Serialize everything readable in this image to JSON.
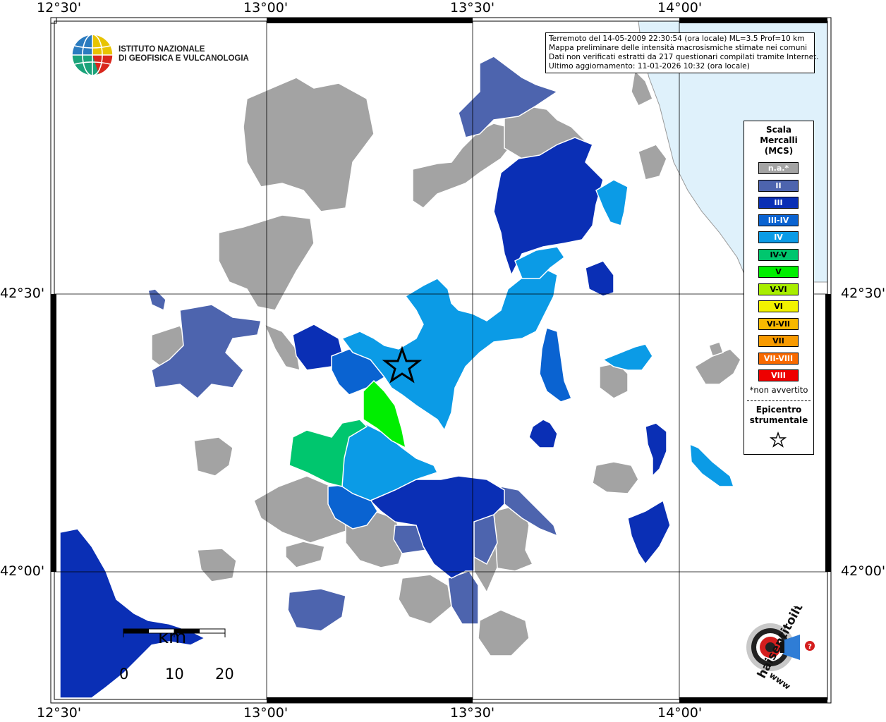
{
  "coordinates": {
    "top_longitudes": [
      "12°30'",
      "13°00'",
      "13°30'",
      "14°00'"
    ],
    "bottom_longitudes": [
      "12°30'",
      "13°00'",
      "13°30'",
      "14°00'"
    ],
    "left_latitudes": [
      "42°30'",
      "42°00'"
    ],
    "right_latitudes": [
      "42°30'",
      "42°00'"
    ]
  },
  "info_box": {
    "line1": "Terremoto del 14-05-2009 22:30:54 (ora locale) ML=3.5 Prof=10 km",
    "line2": "Mappa preliminare delle intensità macrosismiche stimate nei comuni",
    "line3": "Dati non verificati estratti da 217 questionari compilati tramite Internet.",
    "line4": "Ultimo aggiornamento: 11-01-2026 10:32 (ora locale)"
  },
  "institute": {
    "line1": "ISTITUTO NAZIONALE",
    "line2": "DI GEOFISICA E VULCANOLOGIA"
  },
  "legend": {
    "title_line1": "Scala",
    "title_line2": "Mercalli",
    "title_line3": "(MCS)",
    "items": [
      {
        "label": "n.a.*",
        "color": "#a3a3a3",
        "text_color": "#ffffff"
      },
      {
        "label": "II",
        "color": "#4d64ae",
        "text_color": "#ffffff"
      },
      {
        "label": "III",
        "color": "#0a2fb5",
        "text_color": "#ffffff"
      },
      {
        "label": "III-IV",
        "color": "#0a63d1",
        "text_color": "#ffffff"
      },
      {
        "label": "IV",
        "color": "#0b9be6",
        "text_color": "#ffffff"
      },
      {
        "label": "IV-V",
        "color": "#00c66e",
        "text_color": "#000000"
      },
      {
        "label": "V",
        "color": "#00ee00",
        "text_color": "#000000"
      },
      {
        "label": "V-VI",
        "color": "#a8ee00",
        "text_color": "#000000"
      },
      {
        "label": "VI",
        "color": "#f2f200",
        "text_color": "#000000"
      },
      {
        "label": "VI-VII",
        "color": "#f8b800",
        "text_color": "#000000"
      },
      {
        "label": "VII",
        "color": "#f89a00",
        "text_color": "#000000"
      },
      {
        "label": "VII-VIII",
        "color": "#f86a00",
        "text_color": "#ffffff"
      },
      {
        "label": "VIII",
        "color": "#ee0000",
        "text_color": "#ffffff"
      }
    ],
    "note": "*non avvertito",
    "epicenter_line1": "Epicentro",
    "epicenter_line2": "strumentale"
  },
  "scale_bar": {
    "unit": "km",
    "ticks": [
      "0",
      "10",
      "20"
    ]
  },
  "colors": {
    "sea": "#dff1fb",
    "frame": "#000000"
  },
  "site_logo_text": "haisentitoilterremoto.it www"
}
